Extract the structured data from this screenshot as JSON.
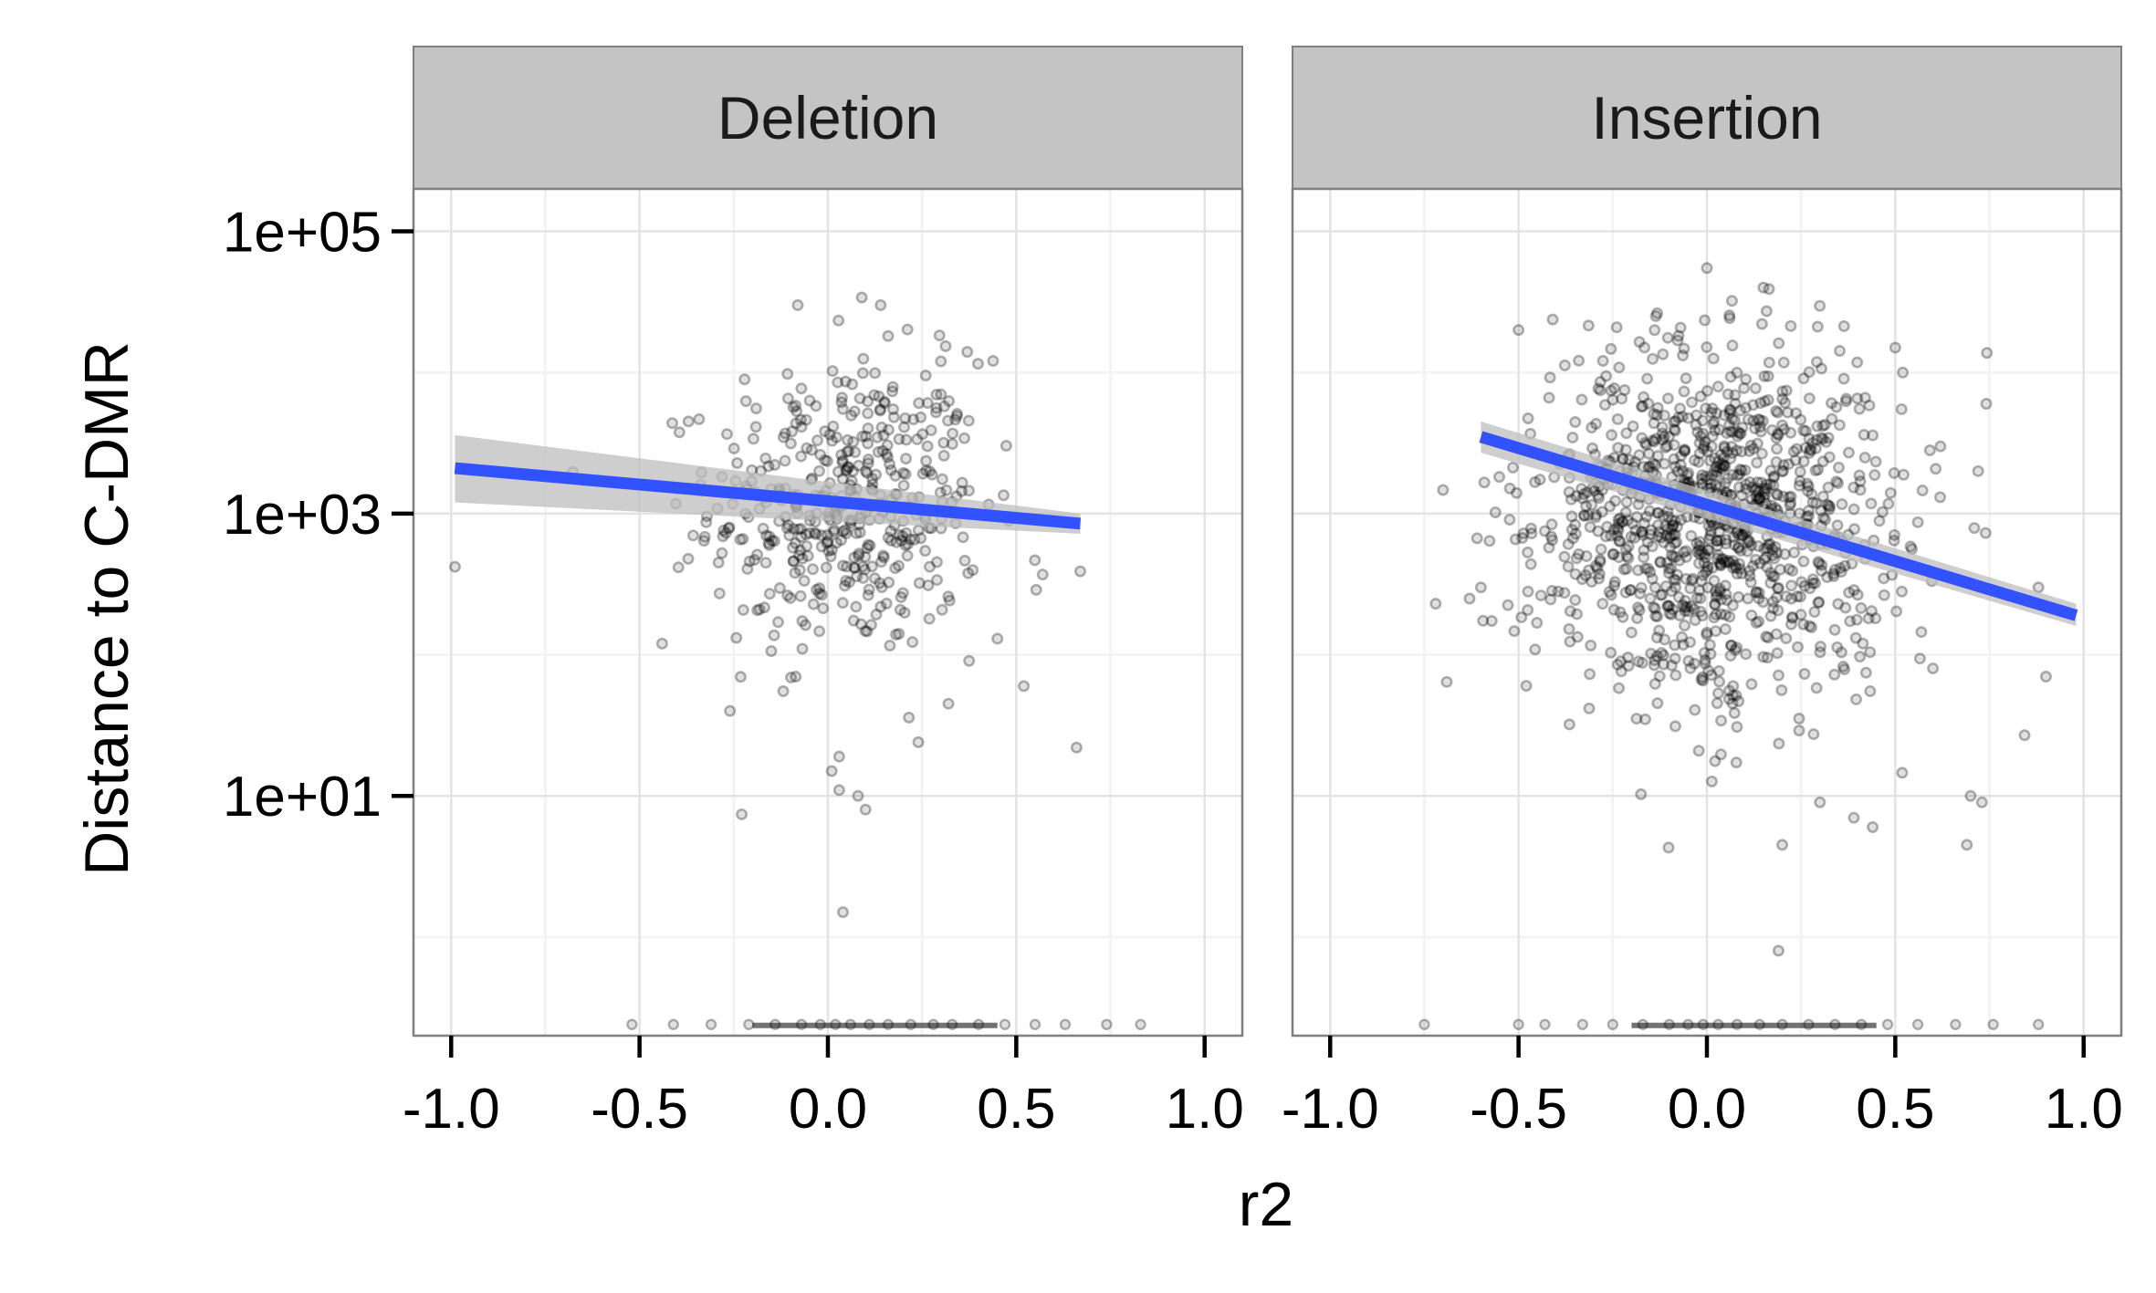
{
  "chart_data": {
    "type": "scatter",
    "facet_variable": "type",
    "panels": [
      "Deletion",
      "Insertion"
    ],
    "xlabel": "r2",
    "ylabel": "Distance to C-DMR",
    "x_ticks": [
      "-1.0",
      "-0.5",
      "0.0",
      "0.5",
      "1.0"
    ],
    "y_ticks": [
      "1e+01",
      "1e+03",
      "1e+05"
    ],
    "y_scale": "log10",
    "xlim": [
      -1.1,
      1.1
    ],
    "ylim": [
      0.2,
      200000
    ],
    "grid": true,
    "legend": "none",
    "point_color": "#000000",
    "point_alpha": 0.3,
    "line_color": "#3352ff",
    "ribbon_color": "#bdbdbd",
    "strip_fill": "#c4c4c4",
    "series": [
      {
        "panel": "Deletion",
        "trend": {
          "x": [
            -0.99,
            0.67
          ],
          "y": [
            2100,
            850
          ],
          "ribbon_low": [
            1200,
            720
          ],
          "ribbon_high": [
            3600,
            1000
          ]
        },
        "cloud": {
          "n": 450,
          "x_mean": 0.05,
          "x_sd": 0.18,
          "log10_mean": 3.05,
          "log10_sd": 0.52
        },
        "points": [
          [
            -0.99,
            420
          ],
          [
            0.67,
            390
          ],
          [
            0.57,
            370
          ],
          [
            0.66,
            22
          ],
          [
            0.52,
            60
          ],
          [
            0.45,
            130
          ],
          [
            0.32,
            45
          ],
          [
            -0.26,
            40
          ],
          [
            -0.44,
            120
          ],
          [
            0.24,
            24
          ],
          [
            0.08,
            10
          ],
          [
            0.1,
            8
          ],
          [
            0.03,
            11
          ],
          [
            0.01,
            15
          ],
          [
            0.03,
            19
          ],
          [
            0.14,
            30000
          ],
          [
            0.09,
            34000
          ],
          [
            -0.08,
            30000
          ],
          [
            0.3,
            12000
          ],
          [
            0.37,
            14000
          ],
          [
            0.04,
            1.5
          ],
          [
            0.3,
            7000
          ],
          [
            -0.37,
            4500
          ]
        ],
        "zeros": {
          "x": [
            -0.52,
            -0.41,
            -0.31,
            -0.21,
            -0.14,
            -0.07,
            -0.02,
            0.02,
            0.06,
            0.11,
            0.16,
            0.22,
            0.28,
            0.33,
            0.4,
            0.47,
            0.55,
            0.63,
            0.74,
            0.83
          ],
          "y": 0.24
        }
      },
      {
        "panel": "Insertion",
        "trend": {
          "x": [
            -0.6,
            0.98
          ],
          "y": [
            3500,
            190
          ],
          "ribbon_low": [
            2700,
            160
          ],
          "ribbon_high": [
            4500,
            230
          ]
        },
        "cloud": {
          "n": 1100,
          "x_mean": 0.02,
          "x_sd": 0.24,
          "log10_mean": 2.95,
          "log10_sd": 0.62
        },
        "points": [
          [
            -0.5,
            20000
          ],
          [
            0.0,
            55000
          ],
          [
            0.15,
            40000
          ],
          [
            0.5,
            15000
          ],
          [
            0.52,
            10000
          ],
          [
            0.62,
            3000
          ],
          [
            0.72,
            2000
          ],
          [
            0.88,
            300
          ],
          [
            0.9,
            70
          ],
          [
            0.6,
            80
          ],
          [
            0.7,
            10
          ],
          [
            0.73,
            9
          ],
          [
            0.69,
            4.5
          ],
          [
            0.3,
            9
          ],
          [
            0.39,
            7
          ],
          [
            0.44,
            6
          ],
          [
            0.2,
            4.5
          ],
          [
            0.19,
            0.8
          ],
          [
            -0.6,
            300
          ],
          [
            -0.63,
            250
          ],
          [
            -0.72,
            230
          ]
        ],
        "zeros": {
          "x": [
            -0.75,
            -0.5,
            -0.43,
            -0.33,
            -0.25,
            -0.17,
            -0.1,
            -0.05,
            -0.01,
            0.03,
            0.08,
            0.14,
            0.2,
            0.27,
            0.34,
            0.41,
            0.48,
            0.56,
            0.66,
            0.76,
            0.88
          ],
          "y": 0.24
        }
      }
    ]
  }
}
